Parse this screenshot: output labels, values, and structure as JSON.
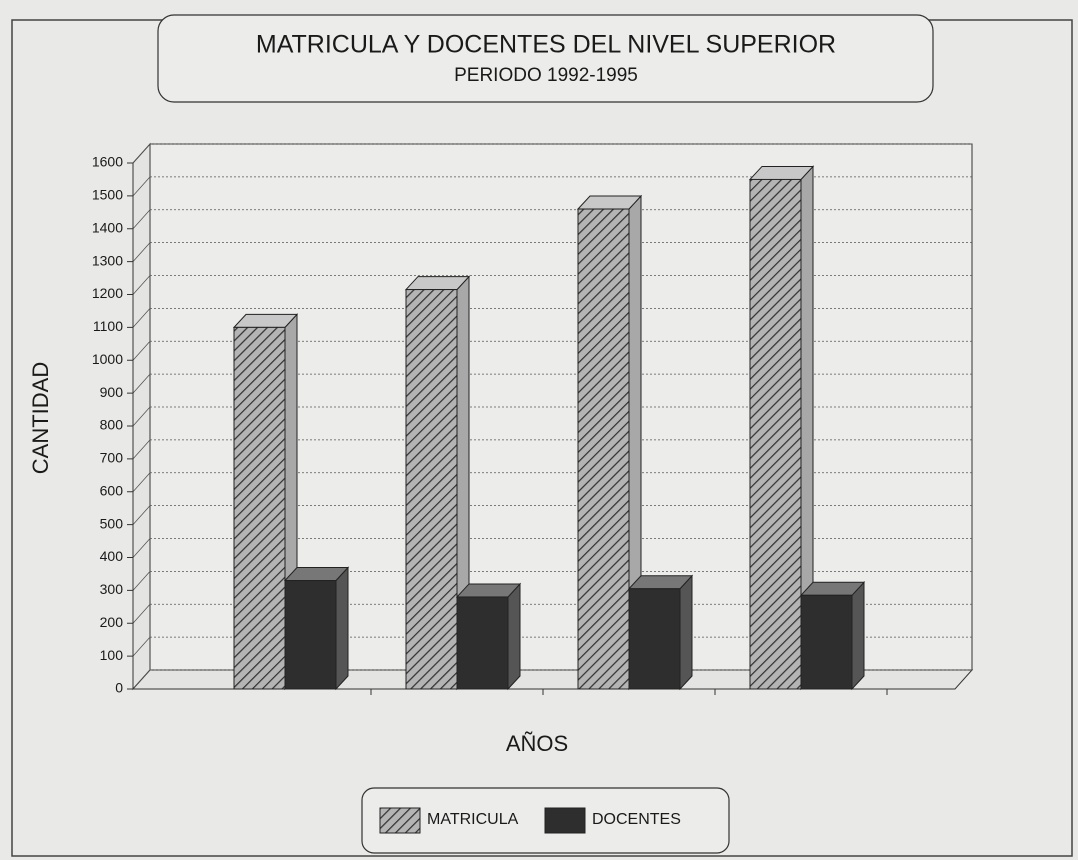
{
  "chart_data": {
    "type": "bar3d",
    "title": "MATRICULA Y DOCENTES DEL NIVEL SUPERIOR",
    "subtitle": "PERIODO 1992-1995",
    "y_label": "CANTIDAD",
    "x_label": "AÑOS",
    "categories": [
      null,
      null,
      null,
      null
    ],
    "series": [
      {
        "name": "MATRICULA",
        "color": "#9c9c9c",
        "hatch": true,
        "values": [
          1100,
          1215,
          1460,
          1550
        ]
      },
      {
        "name": "DOCENTES",
        "color": "#2e2e2e",
        "hatch": false,
        "values": [
          330,
          280,
          305,
          285
        ]
      }
    ],
    "ylim": [
      0,
      1600
    ],
    "yticks": [
      0,
      100,
      200,
      300,
      400,
      500,
      600,
      700,
      800,
      900,
      1000,
      1100,
      1200,
      1300,
      1400,
      1500,
      1600
    ],
    "grid": true,
    "legend": "bottom"
  }
}
